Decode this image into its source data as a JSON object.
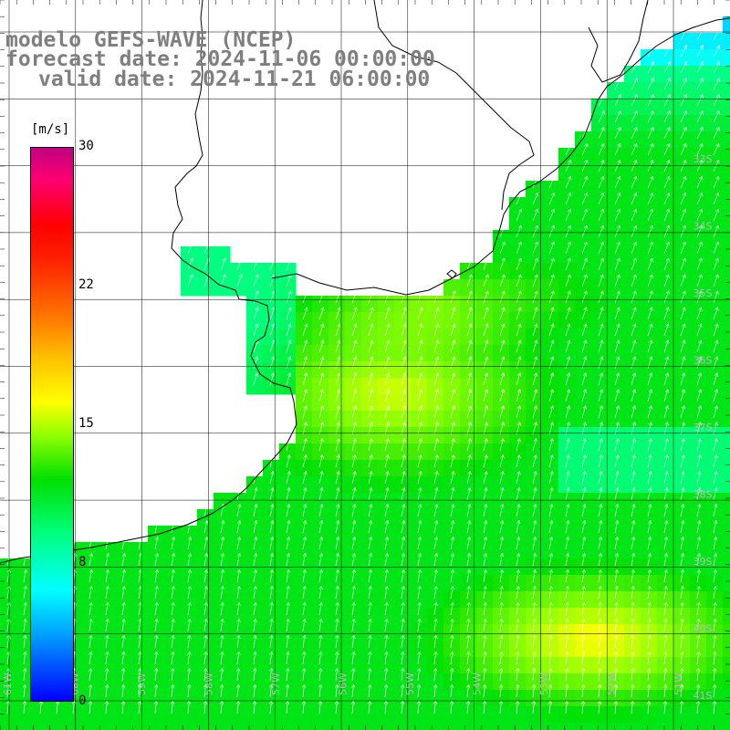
{
  "title": {
    "line1": "modelo GEFS-WAVE (NCEP)",
    "line2": "forecast date: 2024-11-06 00:00:00",
    "line3": "valid date: 2024-11-21 06:00:00"
  },
  "colorbar": {
    "unit": "[m/s]",
    "ticks": [
      "30",
      "22",
      "15",
      "8",
      "0"
    ],
    "tick_values": [
      30,
      22,
      15,
      8,
      0
    ]
  },
  "map": {
    "lon_labels": [
      "61W",
      "60W",
      "59W",
      "58W",
      "57W",
      "56W",
      "55W",
      "54W",
      "53W",
      "52W",
      "51W"
    ],
    "lat_labels": [
      "33S",
      "34S",
      "35S",
      "36S",
      "37S",
      "38S",
      "39S",
      "40S",
      "41S"
    ],
    "land_color": "#ffffff",
    "grid_color": "#000000",
    "wind_direction": "southwest (arrows pointing north-east)"
  }
}
